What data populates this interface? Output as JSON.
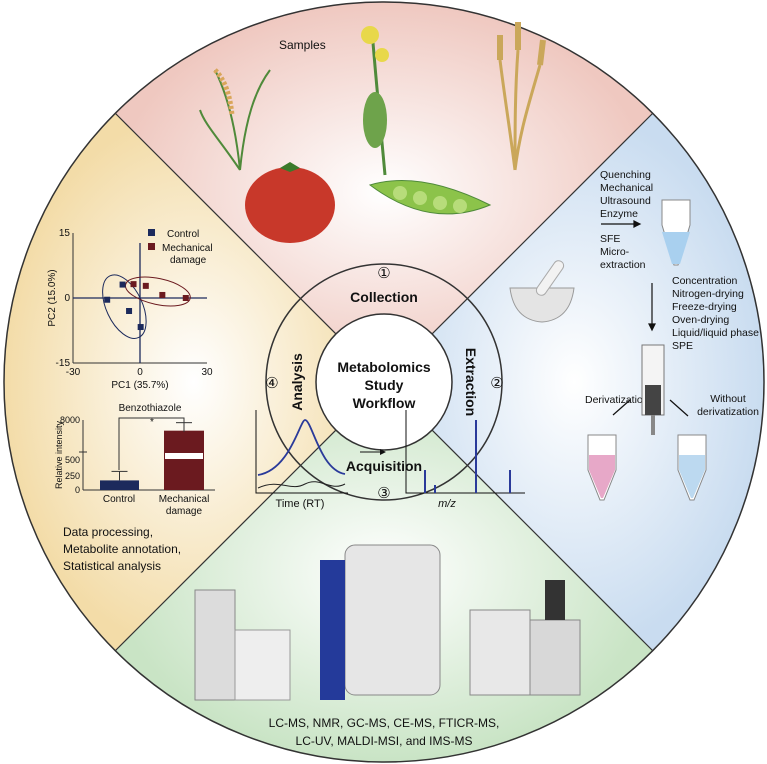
{
  "center": {
    "lines": [
      "Metabolomics",
      "Study",
      "Workflow"
    ]
  },
  "sectors": {
    "collection": {
      "label": "Collection",
      "number": "①",
      "samples_label": "Samples",
      "color": "#f3d2cb"
    },
    "extraction": {
      "label": "Extraction",
      "number": "②",
      "color": "#d3e3f3",
      "methods_1": [
        "Quenching",
        "Mechanical",
        "Ultrasound",
        "Enzyme"
      ],
      "methods_2": [
        "SFE",
        "Micro-",
        "extraction"
      ],
      "methods_3": [
        "Concentration",
        "Nitrogen-drying",
        "Freeze-drying",
        "Oven-drying",
        "Liquid/liquid phase",
        "SPE"
      ],
      "derivatization": "Derivatization",
      "without_derivatization": [
        "Without",
        "derivatization"
      ]
    },
    "acquisition": {
      "label": "Acquisition",
      "number": "③",
      "color": "#d6ead3",
      "time_label": "Time (RT)",
      "mz_label": "m/z",
      "instruments": [
        "LC-MS, NMR, GC-MS, CE-MS, FTICR-MS,",
        "LC-UV, MALDI-MSI, and IMS-MS"
      ]
    },
    "analysis": {
      "label": "Analysis",
      "number": "④",
      "color": "#f6e3b9",
      "steps": [
        "Data processing,",
        "Metabolite annotation,",
        "Statistical analysis"
      ]
    }
  },
  "chart_data": [
    {
      "type": "scatter",
      "xlabel": "PC1 (35.7%)",
      "ylabel": "PC2 (15.0%)",
      "xlim": [
        -30,
        30
      ],
      "ylim": [
        -15,
        15
      ],
      "xticks": [
        "-30",
        "0",
        "30"
      ],
      "yticks": [
        "15",
        "0",
        "-15"
      ],
      "legend": "top-right",
      "series": [
        {
          "name": "Control",
          "color": "#1c2a5c",
          "points": [
            [
              -14.7,
              -0.4
            ],
            [
              -7.8,
              3.1
            ],
            [
              -4.9,
              -3.0
            ],
            [
              0.3,
              -6.7
            ]
          ]
        },
        {
          "name": "Mechanical damage",
          "color": "#6b1a1f",
          "points": [
            [
              -2.9,
              3.2
            ],
            [
              2.6,
              2.8
            ],
            [
              10.0,
              0.7
            ],
            [
              20.5,
              0.0
            ]
          ]
        }
      ]
    },
    {
      "type": "bar",
      "title": "Benzothiazole",
      "ylabel": "Relative intensity",
      "categories": [
        "Control",
        "Mechanical damage"
      ],
      "yticks": [
        "8000",
        "500",
        "250",
        "0"
      ],
      "values": [
        160,
        6000
      ],
      "errors": [
        150,
        1500
      ],
      "significance": "*",
      "colors": [
        "#1c2a5c",
        "#6b1a1f"
      ]
    }
  ]
}
